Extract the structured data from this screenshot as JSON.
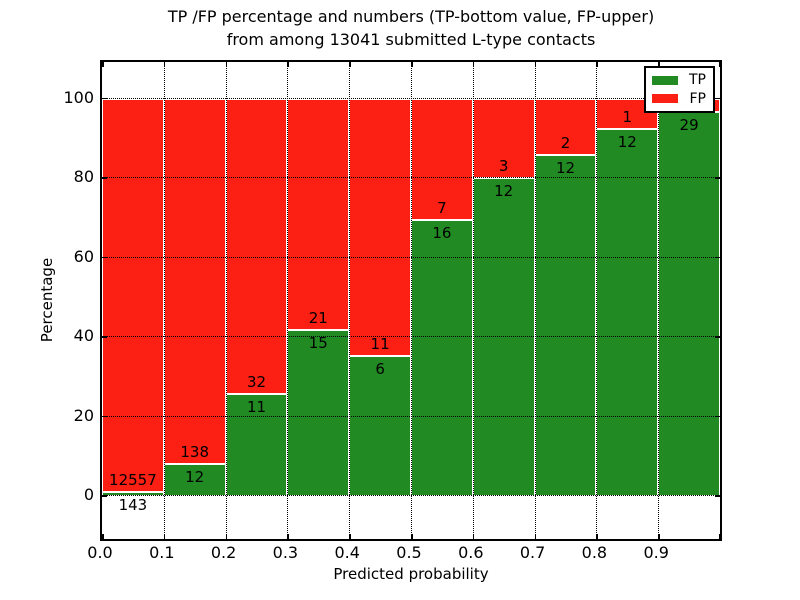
{
  "chart_data": {
    "type": "bar",
    "stacked": true,
    "title_line1": "TP /FP percentage and numbers (TP-bottom value, FP-upper)",
    "title_line2": "from among 13041 submitted L-type contacts",
    "total_submitted": 13041,
    "xlabel": "Predicted probability",
    "ylabel": "Percentage",
    "xlim": [
      0.0,
      1.0
    ],
    "ylim": [
      -10.8,
      109.2
    ],
    "grid": true,
    "legend_position": "upper right",
    "colors": {
      "tp": "#228a22",
      "fp": "#fb1f14",
      "grid": "#000000",
      "bar_edge": "#ffffff"
    },
    "legend": [
      {
        "name": "TP",
        "color_key": "tp"
      },
      {
        "name": "FP",
        "color_key": "fp"
      }
    ],
    "x_tick_labels": [
      "0.0",
      "0.1",
      "0.2",
      "0.3",
      "0.4",
      "0.5",
      "0.6",
      "0.7",
      "0.8",
      "0.9"
    ],
    "y_tick_values": [
      0,
      20,
      40,
      60,
      80,
      100
    ],
    "bars": [
      {
        "bin": "0.0-0.1",
        "tp": 143,
        "fp": 12557,
        "tp_label": "143",
        "fp_label": "12557",
        "tp_pct": 1.13
      },
      {
        "bin": "0.1-0.2",
        "tp": 12,
        "fp": 138,
        "tp_label": "12",
        "fp_label": "138",
        "tp_pct": 8.0
      },
      {
        "bin": "0.2-0.3",
        "tp": 11,
        "fp": 32,
        "tp_label": "11",
        "fp_label": "32",
        "tp_pct": 25.58
      },
      {
        "bin": "0.3-0.4",
        "tp": 15,
        "fp": 21,
        "tp_label": "15",
        "fp_label": "21",
        "tp_pct": 41.67
      },
      {
        "bin": "0.4-0.5",
        "tp": 6,
        "fp": 11,
        "tp_label": "6",
        "fp_label": "11",
        "tp_pct": 35.29
      },
      {
        "bin": "0.5-0.6",
        "tp": 16,
        "fp": 7,
        "tp_label": "16",
        "fp_label": "7",
        "tp_pct": 69.57
      },
      {
        "bin": "0.6-0.7",
        "tp": 12,
        "fp": 3,
        "tp_label": "12",
        "fp_label": "3",
        "tp_pct": 80.0
      },
      {
        "bin": "0.7-0.8",
        "tp": 12,
        "fp": 2,
        "tp_label": "12",
        "fp_label": "2",
        "tp_pct": 85.71
      },
      {
        "bin": "0.8-0.9",
        "tp": 12,
        "fp": 1,
        "tp_label": "12",
        "fp_label": "1",
        "tp_pct": 92.31
      },
      {
        "bin": "0.9-1.0",
        "tp": 29,
        "fp": 1,
        "tp_label": "29",
        "fp_label": "",
        "tp_pct": 96.67
      }
    ]
  }
}
